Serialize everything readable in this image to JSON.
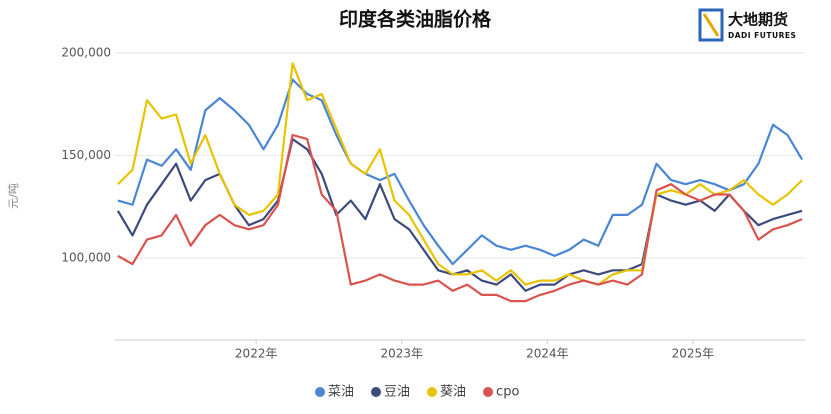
{
  "chart_data": {
    "type": "line",
    "title": "印度各类油脂价格",
    "y_label": "元/吨",
    "logo": {
      "name": "大地期货",
      "sub": "DADI FUTURES"
    },
    "xlim": [
      2021.03,
      2025.77
    ],
    "xticks": [
      {
        "value": 2022,
        "label": "2022年"
      },
      {
        "value": 2023,
        "label": "2023年"
      },
      {
        "value": 2024,
        "label": "2024年"
      },
      {
        "value": 2025,
        "label": "2025年"
      }
    ],
    "ylim": [
      60000,
      200000
    ],
    "yticks": [
      {
        "value": 100000,
        "label": "100,000"
      },
      {
        "value": 150000,
        "label": "150,000"
      },
      {
        "value": 200000,
        "label": "200,000"
      }
    ],
    "grid": true,
    "x": [
      2021.05,
      2021.15,
      2021.25,
      2021.35,
      2021.45,
      2021.55,
      2021.65,
      2021.75,
      2021.85,
      2021.95,
      2022.05,
      2022.15,
      2022.25,
      2022.35,
      2022.45,
      2022.55,
      2022.65,
      2022.75,
      2022.85,
      2022.95,
      2023.05,
      2023.15,
      2023.25,
      2023.35,
      2023.45,
      2023.55,
      2023.65,
      2023.75,
      2023.85,
      2023.95,
      2024.05,
      2024.15,
      2024.25,
      2024.35,
      2024.45,
      2024.55,
      2024.65,
      2024.75,
      2024.85,
      2024.95,
      2025.05,
      2025.15,
      2025.25,
      2025.35,
      2025.45,
      2025.55,
      2025.65,
      2025.75
    ],
    "series": [
      {
        "name": "菜油",
        "color": "#4a86d4",
        "values": [
          128000,
          126000,
          148000,
          145000,
          153000,
          143000,
          172000,
          178000,
          172000,
          165000,
          153000,
          165000,
          187000,
          180000,
          177000,
          160000,
          146000,
          141000,
          138000,
          141000,
          128000,
          116000,
          106000,
          97000,
          104000,
          111000,
          106000,
          104000,
          106000,
          104000,
          101000,
          104000,
          109000,
          106000,
          121000,
          121000,
          126000,
          146000,
          138000,
          136000,
          138000,
          136000,
          133000,
          136000,
          146000,
          165000,
          160000,
          148000
        ]
      },
      {
        "name": "豆油",
        "color": "#3d4a7c",
        "values": [
          123000,
          111000,
          126000,
          136000,
          146000,
          128000,
          138000,
          141000,
          126000,
          116000,
          119000,
          128000,
          158000,
          153000,
          141000,
          121000,
          128000,
          119000,
          136000,
          119000,
          114000,
          104000,
          94000,
          92000,
          94000,
          89000,
          87000,
          92000,
          84000,
          87000,
          87000,
          92000,
          94000,
          92000,
          94000,
          94000,
          97000,
          131000,
          128000,
          126000,
          128000,
          123000,
          131000,
          123000,
          116000,
          119000,
          121000,
          123000
        ]
      },
      {
        "name": "葵油",
        "color": "#e8c300",
        "values": [
          136000,
          143000,
          177000,
          168000,
          170000,
          146000,
          160000,
          141000,
          126000,
          121000,
          123000,
          131000,
          195000,
          177000,
          180000,
          163000,
          146000,
          141000,
          153000,
          128000,
          121000,
          109000,
          97000,
          92000,
          92000,
          94000,
          89000,
          94000,
          87000,
          89000,
          89000,
          92000,
          89000,
          87000,
          92000,
          94000,
          94000,
          131000,
          133000,
          131000,
          136000,
          131000,
          133000,
          138000,
          131000,
          126000,
          131000,
          138000
        ]
      },
      {
        "name": "cpo",
        "color": "#d9534f",
        "values": [
          101000,
          97000,
          109000,
          111000,
          121000,
          106000,
          116000,
          121000,
          116000,
          114000,
          116000,
          126000,
          160000,
          158000,
          131000,
          123000,
          87000,
          89000,
          92000,
          89000,
          87000,
          87000,
          89000,
          84000,
          87000,
          82000,
          82000,
          79000,
          79000,
          82000,
          84000,
          87000,
          89000,
          87000,
          89000,
          87000,
          92000,
          133000,
          136000,
          131000,
          128000,
          131000,
          131000,
          123000,
          109000,
          114000,
          116000,
          119000
        ]
      }
    ]
  }
}
